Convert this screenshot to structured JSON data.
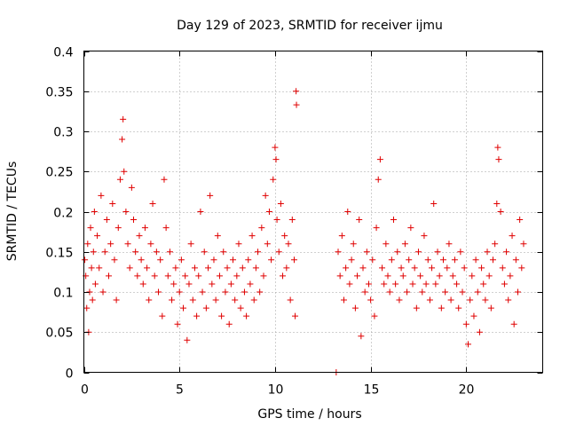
{
  "chart_data": {
    "type": "scatter",
    "title": "Day 129 of 2023, SRMTID for receiver ijmu",
    "xlabel": "GPS time / hours",
    "ylabel": "SRMTID / TECUs",
    "xlim": [
      0,
      24
    ],
    "ylim": [
      0,
      0.4
    ],
    "xticks": [
      0,
      5,
      10,
      15,
      20
    ],
    "xtick_labels": [
      "0",
      "5",
      "10",
      "15",
      "20"
    ],
    "yticks": [
      0,
      0.05,
      0.1,
      0.15,
      0.2,
      0.25,
      0.3,
      0.35,
      0.4
    ],
    "ytick_labels": [
      "0",
      "0.05",
      "0.1",
      "0.15",
      "0.2",
      "0.25",
      "0.3",
      "0.35",
      "0.4"
    ],
    "grid": true,
    "marker": "plus",
    "color": "#e00000",
    "data_gap_hours": [
      11.25,
      13.2
    ],
    "series": [
      {
        "name": "SRMTID",
        "points": [
          [
            0.05,
            0.14
          ],
          [
            0.1,
            0.12
          ],
          [
            0.15,
            0.08
          ],
          [
            0.2,
            0.16
          ],
          [
            0.25,
            0.05
          ],
          [
            0.3,
            0.1
          ],
          [
            0.35,
            0.18
          ],
          [
            0.4,
            0.13
          ],
          [
            0.45,
            0.09
          ],
          [
            0.5,
            0.15
          ],
          [
            0.55,
            0.2
          ],
          [
            0.6,
            0.11
          ],
          [
            0.7,
            0.17
          ],
          [
            0.8,
            0.13
          ],
          [
            0.9,
            0.22
          ],
          [
            1.0,
            0.1
          ],
          [
            1.1,
            0.15
          ],
          [
            1.2,
            0.19
          ],
          [
            1.3,
            0.12
          ],
          [
            1.4,
            0.16
          ],
          [
            1.5,
            0.21
          ],
          [
            1.6,
            0.14
          ],
          [
            1.7,
            0.09
          ],
          [
            1.8,
            0.18
          ],
          [
            1.9,
            0.24
          ],
          [
            2.0,
            0.29
          ],
          [
            2.05,
            0.315
          ],
          [
            2.1,
            0.25
          ],
          [
            2.2,
            0.2
          ],
          [
            2.3,
            0.16
          ],
          [
            2.4,
            0.13
          ],
          [
            2.5,
            0.23
          ],
          [
            2.6,
            0.19
          ],
          [
            2.7,
            0.15
          ],
          [
            2.8,
            0.12
          ],
          [
            2.9,
            0.17
          ],
          [
            3.0,
            0.14
          ],
          [
            3.1,
            0.11
          ],
          [
            3.2,
            0.18
          ],
          [
            3.3,
            0.13
          ],
          [
            3.4,
            0.09
          ],
          [
            3.5,
            0.16
          ],
          [
            3.6,
            0.21
          ],
          [
            3.7,
            0.12
          ],
          [
            3.8,
            0.15
          ],
          [
            3.9,
            0.1
          ],
          [
            4.0,
            0.14
          ],
          [
            4.1,
            0.07
          ],
          [
            4.2,
            0.24
          ],
          [
            4.3,
            0.18
          ],
          [
            4.4,
            0.12
          ],
          [
            4.5,
            0.15
          ],
          [
            4.6,
            0.09
          ],
          [
            4.7,
            0.11
          ],
          [
            4.8,
            0.13
          ],
          [
            4.9,
            0.06
          ],
          [
            5.0,
            0.1
          ],
          [
            5.1,
            0.14
          ],
          [
            5.2,
            0.08
          ],
          [
            5.3,
            0.12
          ],
          [
            5.4,
            0.04
          ],
          [
            5.5,
            0.11
          ],
          [
            5.6,
            0.16
          ],
          [
            5.7,
            0.09
          ],
          [
            5.8,
            0.13
          ],
          [
            5.9,
            0.07
          ],
          [
            6.0,
            0.12
          ],
          [
            6.1,
            0.2
          ],
          [
            6.2,
            0.1
          ],
          [
            6.3,
            0.15
          ],
          [
            6.4,
            0.08
          ],
          [
            6.5,
            0.13
          ],
          [
            6.6,
            0.22
          ],
          [
            6.7,
            0.11
          ],
          [
            6.8,
            0.14
          ],
          [
            6.9,
            0.09
          ],
          [
            7.0,
            0.17
          ],
          [
            7.1,
            0.12
          ],
          [
            7.2,
            0.07
          ],
          [
            7.3,
            0.15
          ],
          [
            7.4,
            0.1
          ],
          [
            7.5,
            0.13
          ],
          [
            7.6,
            0.06
          ],
          [
            7.7,
            0.11
          ],
          [
            7.8,
            0.14
          ],
          [
            7.9,
            0.09
          ],
          [
            8.0,
            0.12
          ],
          [
            8.1,
            0.16
          ],
          [
            8.2,
            0.08
          ],
          [
            8.3,
            0.13
          ],
          [
            8.4,
            0.1
          ],
          [
            8.5,
            0.07
          ],
          [
            8.6,
            0.14
          ],
          [
            8.7,
            0.11
          ],
          [
            8.8,
            0.17
          ],
          [
            8.9,
            0.09
          ],
          [
            9.0,
            0.13
          ],
          [
            9.1,
            0.15
          ],
          [
            9.2,
            0.1
          ],
          [
            9.3,
            0.18
          ],
          [
            9.4,
            0.12
          ],
          [
            9.5,
            0.22
          ],
          [
            9.6,
            0.16
          ],
          [
            9.7,
            0.2
          ],
          [
            9.8,
            0.14
          ],
          [
            9.9,
            0.24
          ],
          [
            10.0,
            0.28
          ],
          [
            10.05,
            0.265
          ],
          [
            10.1,
            0.19
          ],
          [
            10.2,
            0.15
          ],
          [
            10.3,
            0.21
          ],
          [
            10.4,
            0.12
          ],
          [
            10.5,
            0.17
          ],
          [
            10.6,
            0.13
          ],
          [
            10.7,
            0.16
          ],
          [
            10.8,
            0.09
          ],
          [
            10.9,
            0.19
          ],
          [
            11.0,
            0.14
          ],
          [
            11.05,
            0.07
          ],
          [
            11.1,
            0.35
          ],
          [
            11.12,
            0.333
          ],
          [
            13.2,
            0.0
          ],
          [
            13.3,
            0.15
          ],
          [
            13.4,
            0.12
          ],
          [
            13.5,
            0.17
          ],
          [
            13.6,
            0.09
          ],
          [
            13.7,
            0.13
          ],
          [
            13.8,
            0.2
          ],
          [
            13.9,
            0.11
          ],
          [
            14.0,
            0.14
          ],
          [
            14.1,
            0.16
          ],
          [
            14.2,
            0.08
          ],
          [
            14.3,
            0.12
          ],
          [
            14.4,
            0.19
          ],
          [
            14.5,
            0.045
          ],
          [
            14.6,
            0.13
          ],
          [
            14.7,
            0.1
          ],
          [
            14.8,
            0.15
          ],
          [
            14.9,
            0.11
          ],
          [
            15.0,
            0.09
          ],
          [
            15.1,
            0.14
          ],
          [
            15.2,
            0.07
          ],
          [
            15.3,
            0.18
          ],
          [
            15.4,
            0.24
          ],
          [
            15.5,
            0.265
          ],
          [
            15.6,
            0.13
          ],
          [
            15.7,
            0.11
          ],
          [
            15.8,
            0.16
          ],
          [
            15.9,
            0.12
          ],
          [
            16.0,
            0.1
          ],
          [
            16.1,
            0.14
          ],
          [
            16.2,
            0.19
          ],
          [
            16.3,
            0.11
          ],
          [
            16.4,
            0.15
          ],
          [
            16.5,
            0.09
          ],
          [
            16.6,
            0.13
          ],
          [
            16.7,
            0.12
          ],
          [
            16.8,
            0.16
          ],
          [
            16.9,
            0.1
          ],
          [
            17.0,
            0.14
          ],
          [
            17.1,
            0.18
          ],
          [
            17.2,
            0.11
          ],
          [
            17.3,
            0.13
          ],
          [
            17.4,
            0.08
          ],
          [
            17.5,
            0.15
          ],
          [
            17.6,
            0.12
          ],
          [
            17.7,
            0.1
          ],
          [
            17.8,
            0.17
          ],
          [
            17.9,
            0.11
          ],
          [
            18.0,
            0.14
          ],
          [
            18.1,
            0.09
          ],
          [
            18.2,
            0.13
          ],
          [
            18.3,
            0.21
          ],
          [
            18.4,
            0.11
          ],
          [
            18.5,
            0.15
          ],
          [
            18.6,
            0.12
          ],
          [
            18.7,
            0.08
          ],
          [
            18.8,
            0.14
          ],
          [
            18.9,
            0.1
          ],
          [
            19.0,
            0.13
          ],
          [
            19.1,
            0.16
          ],
          [
            19.2,
            0.09
          ],
          [
            19.3,
            0.12
          ],
          [
            19.4,
            0.14
          ],
          [
            19.5,
            0.11
          ],
          [
            19.6,
            0.08
          ],
          [
            19.7,
            0.15
          ],
          [
            19.8,
            0.1
          ],
          [
            19.9,
            0.13
          ],
          [
            20.0,
            0.06
          ],
          [
            20.1,
            0.035
          ],
          [
            20.2,
            0.09
          ],
          [
            20.3,
            0.12
          ],
          [
            20.4,
            0.07
          ],
          [
            20.5,
            0.14
          ],
          [
            20.6,
            0.1
          ],
          [
            20.7,
            0.05
          ],
          [
            20.8,
            0.13
          ],
          [
            20.9,
            0.11
          ],
          [
            21.0,
            0.09
          ],
          [
            21.1,
            0.15
          ],
          [
            21.2,
            0.12
          ],
          [
            21.3,
            0.08
          ],
          [
            21.4,
            0.14
          ],
          [
            21.5,
            0.16
          ],
          [
            21.6,
            0.21
          ],
          [
            21.65,
            0.28
          ],
          [
            21.7,
            0.265
          ],
          [
            21.8,
            0.2
          ],
          [
            21.9,
            0.13
          ],
          [
            22.0,
            0.11
          ],
          [
            22.1,
            0.15
          ],
          [
            22.2,
            0.09
          ],
          [
            22.3,
            0.12
          ],
          [
            22.4,
            0.17
          ],
          [
            22.5,
            0.06
          ],
          [
            22.6,
            0.14
          ],
          [
            22.7,
            0.1
          ],
          [
            22.8,
            0.19
          ],
          [
            22.9,
            0.13
          ],
          [
            23.0,
            0.16
          ]
        ]
      }
    ]
  }
}
